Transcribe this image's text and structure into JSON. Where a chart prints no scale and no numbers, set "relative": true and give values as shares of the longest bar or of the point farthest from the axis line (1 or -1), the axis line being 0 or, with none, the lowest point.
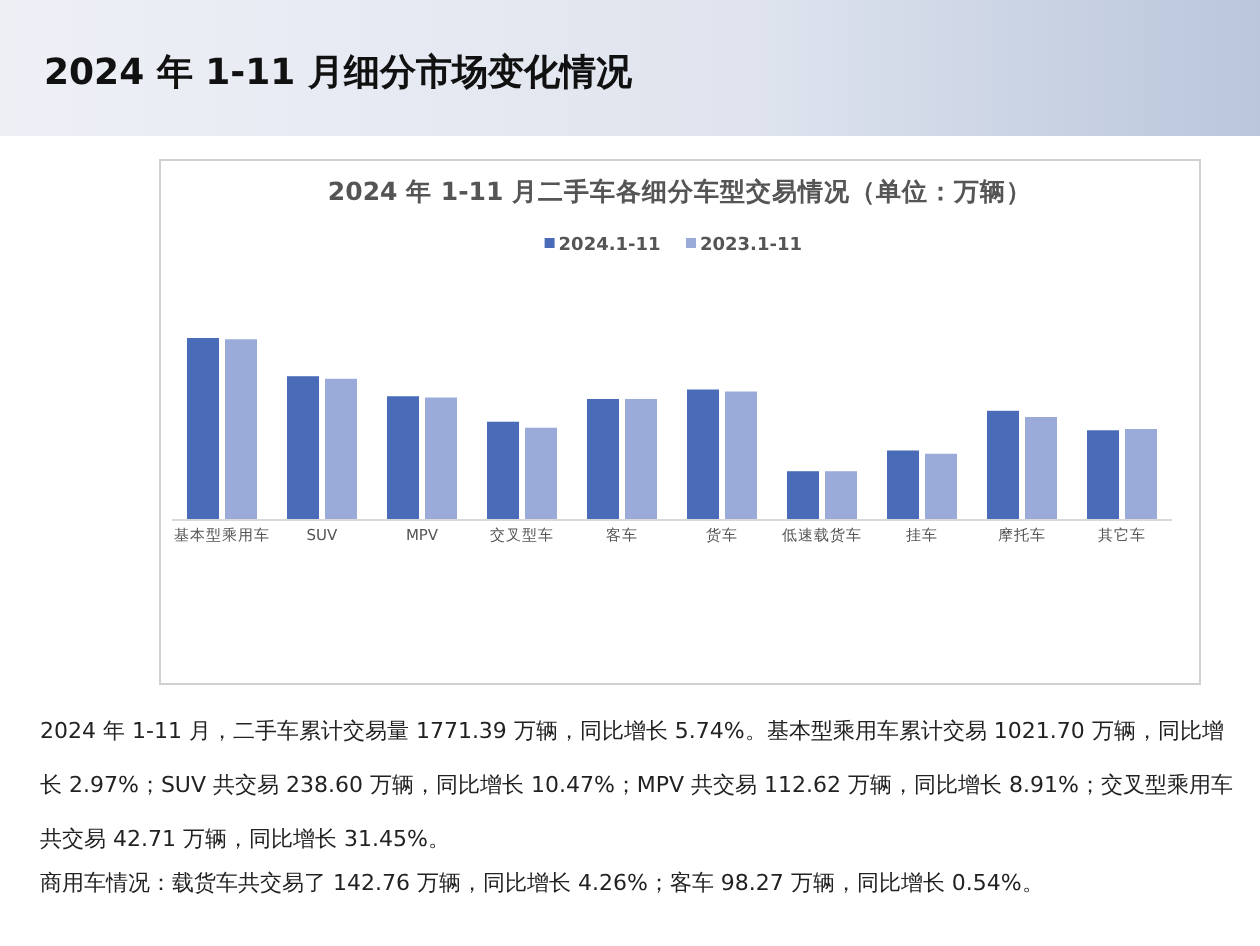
{
  "chart_data": {
    "type": "bar",
    "title": "2024 年 1-11 月二手车各细分车型交易情况（单位：万辆）",
    "categories": [
      "基本型乘用车",
      "SUV",
      "MPV",
      "交叉型车",
      "客车",
      "货车",
      "低速载货车",
      "挂车",
      "摩托车",
      "其它车"
    ],
    "relative": true,
    "legend": "top",
    "series": [
      {
        "name": "2024.1-11",
        "color": "#4a6cb8",
        "values": [
          1,
          0.79,
          0.68,
          0.54,
          0.665,
          0.717,
          0.268,
          0.382,
          0.6,
          0.493
        ]
      },
      {
        "name": "2023.1-11",
        "color": "#9aabd9",
        "values": [
          0.993,
          0.776,
          0.673,
          0.507,
          0.665,
          0.706,
          0.268,
          0.364,
          0.566,
          0.5
        ]
      }
    ],
    "annotations": [
      "2024 年 1-11 月细分市场变化情况",
      "2024 年 1-11 月，二手车累计交易量 1771.39 万辆，同比增长 5.74%。基本型乘用车累计交易 1021.70 万辆，同比增长 2.97%；SUV 共交易 238.60 万辆，同比增长 10.47%；MPV 共交易 112.62 万辆，同比增长 8.91%；交叉型乘用车共交易 42.71 万辆，同比增长 31.45%。",
      "商用车情况：载货车共交易了 142.76 万辆，同比增长 4.26%；客车 98.27 万辆，同比增长 0.54%。"
    ]
  }
}
